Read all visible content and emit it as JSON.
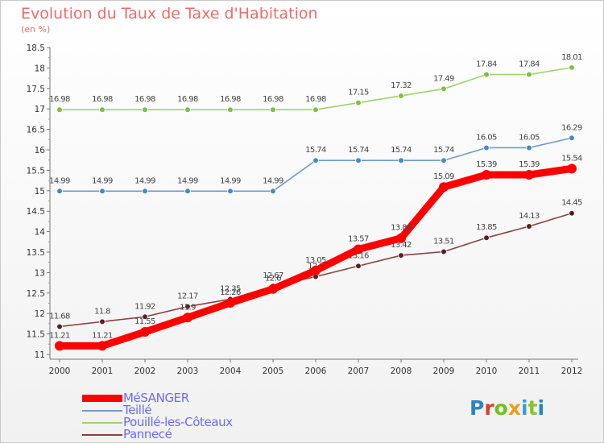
{
  "title": "Evolution du Taux de Taxe d'Habitation",
  "subtitle": "(en %)",
  "logo": {
    "text": "Proxiti",
    "letter_colors": [
      "#2a82c8",
      "#d8402a",
      "#6cc21a",
      "#f39a1a",
      "#3f9ad8",
      "#8ac22a",
      "#2a82c8"
    ]
  },
  "chart_data": {
    "type": "line",
    "title": "Evolution du Taux de Taxe d'Habitation",
    "ylabel": "(en %)",
    "xlabel": "",
    "x": [
      "2000",
      "2001",
      "2002",
      "2003",
      "2004",
      "2005",
      "2006",
      "2007",
      "2008",
      "2009",
      "2010",
      "2011",
      "2012"
    ],
    "ylim": [
      11,
      18.5
    ],
    "yticks": [
      "11",
      "11.5",
      "12",
      "12.5",
      "13",
      "13.5",
      "14",
      "14.5",
      "15",
      "15.5",
      "16",
      "16.5",
      "17",
      "17.5",
      "18",
      "18.5"
    ],
    "grid": false,
    "legend_position": "bottom-left",
    "series": [
      {
        "name": "MéSANGER",
        "color": "#ff0000",
        "emphasis": true,
        "values": [
          11.21,
          11.21,
          11.55,
          11.9,
          12.26,
          12.6,
          13.05,
          13.57,
          13.84,
          15.09,
          15.39,
          15.39,
          15.54
        ],
        "labels": [
          "11.21",
          "11.21",
          "11.55",
          "11.9",
          "12.26",
          "12.6",
          "13.05",
          "13.57",
          "13.84",
          "15.09",
          "15.39",
          "15.39",
          "15.54"
        ]
      },
      {
        "name": "Teillé",
        "color": "#6c9ccc",
        "point_color": "#4a87c6",
        "values": [
          14.99,
          14.99,
          14.99,
          14.99,
          14.99,
          14.99,
          15.74,
          15.74,
          15.74,
          15.74,
          16.05,
          16.05,
          16.29
        ],
        "labels": [
          "14.99",
          "14.99",
          "14.99",
          "14.99",
          "14.99",
          "14.99",
          "15.74",
          "15.74",
          "15.74",
          "15.74",
          "16.05",
          "16.05",
          "16.29"
        ]
      },
      {
        "name": "Pouillé-les-Côteaux",
        "color": "#9ed36a",
        "point_color": "#7cc23c",
        "values": [
          16.98,
          16.98,
          16.98,
          16.98,
          16.98,
          16.98,
          16.98,
          17.15,
          17.32,
          17.49,
          17.84,
          17.84,
          18.01
        ],
        "labels": [
          "16.98",
          "16.98",
          "16.98",
          "16.98",
          "16.98",
          "16.98",
          "16.98",
          "17.15",
          "17.32",
          "17.49",
          "17.84",
          "17.84",
          "18.01"
        ]
      },
      {
        "name": "Pannecé",
        "color": "#8b4040",
        "point_color": "#5a2020",
        "values": [
          11.68,
          11.8,
          11.92,
          12.17,
          12.35,
          12.67,
          12.9,
          13.16,
          13.42,
          13.51,
          13.85,
          14.13,
          14.45
        ],
        "labels": [
          "11.68",
          "11.8",
          "11.92",
          "12.17",
          "12.35",
          "12.67",
          "12.9",
          "13.16",
          "13.42",
          "13.51",
          "13.85",
          "14.13",
          "14.45"
        ]
      }
    ]
  }
}
